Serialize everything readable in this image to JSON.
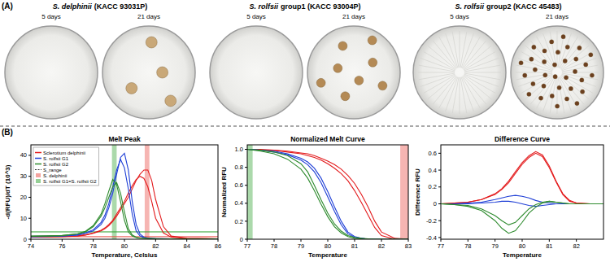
{
  "panel_a": {
    "label": "(A)",
    "days": [
      "5 days",
      "21 days"
    ],
    "isolates": [
      {
        "species": "S. delphinii",
        "label": "(KACC 93031P)"
      },
      {
        "species": "S. rolfsii",
        "label": "group1 (KACC 93004P)"
      },
      {
        "species": "S. rolfsii",
        "label": "group2 (KACC 45483)"
      }
    ]
  },
  "panel_b": {
    "label": "(B)"
  },
  "chart_data": [
    {
      "type": "line",
      "title": "Melt Peak",
      "x_label": "Temperature, Celsius",
      "y_label": "-d(RFU)/dT (10^3)",
      "x": [
        74,
        75,
        76,
        77,
        77.5,
        78,
        78.5,
        78.75,
        79,
        79.25,
        79.5,
        79.75,
        80,
        80.25,
        80.5,
        80.75,
        81,
        81.25,
        81.5,
        81.75,
        82,
        82.5,
        83,
        84,
        86
      ],
      "xlim": [
        74,
        86
      ],
      "xticks": [
        74,
        76,
        78,
        80,
        82,
        84,
        86
      ],
      "ylim": [
        0,
        45
      ],
      "yticks": [
        0,
        10,
        20,
        30,
        40
      ],
      "grid": false,
      "legend": "upper left",
      "band_title": "S_range",
      "bands": [
        {
          "name": "S. delphinii",
          "from": 81.3,
          "to": 81.6,
          "color": "#e8473f"
        },
        {
          "name": "S. rolfsii G1=S. rolfsii G2",
          "from": 79.2,
          "to": 79.5,
          "color": "#2ca02c"
        }
      ],
      "thresholds": [
        {
          "value": 3.5,
          "color": "#2ca02c"
        },
        {
          "value": 1.2,
          "color": "#e8473f"
        }
      ],
      "series": [
        {
          "name": "Sclerotium delphinii",
          "color": "#e31a1c",
          "replicates": [
            [
              1,
              1.1,
              1.2,
              1.5,
              2,
              2.8,
              4,
              5,
              6.5,
              8.5,
              11,
              14,
              17,
              20,
              24,
              28,
              31,
              33,
              33,
              28,
              19,
              6,
              1.5,
              0.5,
              0.2
            ],
            [
              1,
              1.1,
              1.3,
              1.6,
              2.1,
              3,
              4.3,
              5.4,
              7,
              9,
              12,
              15,
              18,
              22,
              25.5,
              28.5,
              30,
              29,
              25,
              18,
              10,
              3,
              1,
              0.4,
              0.2
            ]
          ]
        },
        {
          "name": "S. rolfsii G1",
          "color": "#1f3fd6",
          "replicates": [
            [
              1.2,
              1.3,
              1.5,
              2,
              2.8,
              4,
              7,
              10,
              15,
              22,
              31,
              39,
              41,
              33,
              18,
              7,
              2.5,
              1,
              0.6,
              0.4,
              0.3,
              0.3,
              0.2,
              0.2,
              0.1
            ],
            [
              1.3,
              1.4,
              1.6,
              2.1,
              3,
              4.5,
              8,
              11.5,
              17,
              25,
              33,
              38,
              34,
              24,
              12,
              4,
              1.5,
              0.8,
              0.5,
              0.4,
              0.3,
              0.2,
              0.2,
              0.2,
              0.1
            ]
          ]
        },
        {
          "name": "S. rolfsii G2",
          "color": "#2e8b2e",
          "replicates": [
            [
              1.5,
              1.6,
              1.8,
              2.5,
              3.5,
              6,
              11,
              15,
              20,
              25,
              27,
              22,
              13,
              5,
              2,
              1,
              0.6,
              0.5,
              0.4,
              0.3,
              0.3,
              0.2,
              0.2,
              0.2,
              0.1
            ],
            [
              1.4,
              1.5,
              1.7,
              2.6,
              3.8,
              6.5,
              12,
              17,
              23,
              28.5,
              26,
              18,
              9,
              3.5,
              1.5,
              0.8,
              0.5,
              0.4,
              0.3,
              0.3,
              0.2,
              0.2,
              0.2,
              0.1,
              0.1
            ]
          ]
        }
      ]
    },
    {
      "type": "line",
      "title": "Normalized Melt Curve",
      "x_label": "Temperature",
      "y_label": "Normalized RFU",
      "x": [
        77,
        77.5,
        78,
        78.5,
        79,
        79.25,
        79.5,
        79.75,
        80,
        80.25,
        80.5,
        80.75,
        81,
        81.25,
        81.5,
        81.75,
        82,
        82.5,
        83
      ],
      "xlim": [
        77,
        83
      ],
      "xticks": [
        77,
        78,
        79,
        80,
        81,
        82,
        83
      ],
      "ylim": [
        0,
        1.05
      ],
      "yticks": [
        0,
        0.2,
        0.4,
        0.6,
        0.8,
        {
          "value": 1,
          "label": "1.0"
        }
      ],
      "grid": false,
      "bands": [
        {
          "from": 77,
          "to": 77.2,
          "color": "#2ca02c"
        },
        {
          "from": 82.7,
          "to": 83,
          "color": "#e8473f"
        }
      ],
      "series": [
        {
          "color": "#e31a1c",
          "replicates": [
            [
              1,
              1,
              0.99,
              0.98,
              0.96,
              0.95,
              0.93,
              0.9,
              0.87,
              0.83,
              0.78,
              0.71,
              0.62,
              0.5,
              0.36,
              0.2,
              0.08,
              0.01,
              0
            ],
            [
              1,
              0.99,
              0.99,
              0.97,
              0.95,
              0.93,
              0.91,
              0.88,
              0.84,
              0.79,
              0.73,
              0.65,
              0.54,
              0.41,
              0.27,
              0.13,
              0.04,
              0,
              0
            ]
          ]
        },
        {
          "color": "#1f3fd6",
          "replicates": [
            [
              1,
              0.99,
              0.98,
              0.95,
              0.9,
              0.86,
              0.79,
              0.68,
              0.53,
              0.36,
              0.2,
              0.08,
              0.03,
              0.01,
              0,
              0,
              0,
              0,
              0
            ],
            [
              1,
              0.99,
              0.97,
              0.94,
              0.88,
              0.83,
              0.75,
              0.63,
              0.47,
              0.31,
              0.16,
              0.06,
              0.02,
              0.01,
              0,
              0,
              0,
              0,
              0
            ]
          ]
        },
        {
          "color": "#2e8b2e",
          "replicates": [
            [
              1,
              0.99,
              0.97,
              0.93,
              0.84,
              0.75,
              0.6,
              0.44,
              0.29,
              0.17,
              0.09,
              0.04,
              0.02,
              0.01,
              0.005,
              0,
              0,
              0,
              0
            ],
            [
              1,
              0.98,
              0.95,
              0.89,
              0.78,
              0.68,
              0.54,
              0.39,
              0.25,
              0.14,
              0.07,
              0.03,
              0.01,
              0.005,
              0,
              0,
              0,
              0,
              0
            ]
          ]
        }
      ]
    },
    {
      "type": "line",
      "title": "Difference Curve",
      "x_label": "Temperature",
      "y_label": "Difference RFU",
      "x": [
        77,
        77.5,
        78,
        78.5,
        79,
        79.25,
        79.5,
        79.75,
        80,
        80.25,
        80.5,
        80.75,
        81,
        81.25,
        81.5,
        81.75,
        82,
        82.5,
        83
      ],
      "xlim": [
        77,
        83
      ],
      "xticks": [
        77,
        78,
        79,
        80,
        81,
        82
      ],
      "ylim": [
        -0.42,
        0.7
      ],
      "yticks": [
        -0.4,
        -0.2,
        0,
        0.2,
        0.4,
        0.6
      ],
      "grid": false,
      "series": [
        {
          "color": "#e31a1c",
          "replicates": [
            [
              0,
              0.01,
              0.02,
              0.05,
              0.12,
              0.18,
              0.27,
              0.38,
              0.49,
              0.57,
              0.62,
              0.58,
              0.45,
              0.27,
              0.12,
              0.04,
              0.01,
              0,
              0
            ],
            [
              0,
              0.01,
              0.02,
              0.05,
              0.11,
              0.17,
              0.25,
              0.36,
              0.47,
              0.55,
              0.6,
              0.56,
              0.43,
              0.26,
              0.11,
              0.03,
              0.01,
              0,
              0
            ]
          ]
        },
        {
          "color": "#1f3fd6",
          "replicates": [
            [
              0,
              0,
              0.01,
              0.02,
              0.05,
              0.07,
              0.09,
              0.1,
              0.09,
              0.07,
              0.04,
              0.02,
              0.01,
              0,
              0,
              0,
              0,
              0,
              0
            ],
            [
              0,
              0,
              0,
              0.01,
              0.02,
              0.03,
              0.03,
              0.02,
              0,
              -0.02,
              -0.03,
              -0.02,
              -0.01,
              0,
              0,
              0,
              0,
              0,
              0
            ]
          ]
        },
        {
          "color": "#2e8b2e",
          "replicates": [
            [
              0,
              -0.01,
              -0.03,
              -0.08,
              -0.2,
              -0.29,
              -0.35,
              -0.32,
              -0.22,
              -0.11,
              -0.04,
              0.01,
              0.03,
              0.02,
              0.01,
              0,
              0,
              0,
              0
            ],
            [
              0,
              -0.01,
              -0.02,
              -0.06,
              -0.14,
              -0.2,
              -0.25,
              -0.22,
              -0.14,
              -0.06,
              -0.01,
              0.02,
              0.03,
              0.02,
              0.01,
              0,
              0,
              0,
              0
            ]
          ]
        }
      ]
    }
  ]
}
